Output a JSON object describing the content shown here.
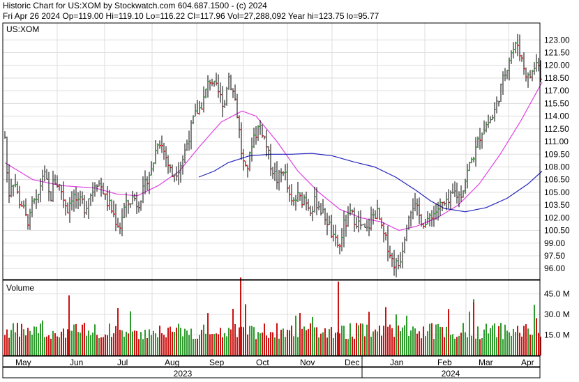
{
  "header": {
    "title": "Historic Chart for US:XOM by Stockwatch.com 604.687.1500 - (c) 2024",
    "stats": "Fri Apr 26 2024   Op=119.00   Hi=119.10   Lo=116.22   Cl=117.96   Vol=27,288,092   Year hi=123.75   lo=95.77"
  },
  "colors": {
    "up": "#2e9a2e",
    "down": "#cc1111",
    "ma_short": "#e040e0",
    "ma_long": "#2222bb",
    "grid": "#dddddd",
    "frame": "#000000"
  },
  "chart_data": [
    {
      "type": "candlestick",
      "title": "US:XOM",
      "y_ticks": [
        "123.00",
        "121.50",
        "120.00",
        "118.50",
        "117.00",
        "115.50",
        "114.00",
        "112.50",
        "111.00",
        "109.50",
        "108.00",
        "106.50",
        "105.00",
        "103.50",
        "102.00",
        "100.50",
        "99.00",
        "97.50",
        "96.00"
      ],
      "ylim": [
        94.7,
        125.0
      ],
      "grid": true,
      "series_points": [
        [
          0,
          111.5
        ],
        [
          5,
          104.5
        ],
        [
          10,
          106.5
        ],
        [
          15,
          106.0
        ],
        [
          20,
          104.0
        ],
        [
          25,
          103.5
        ],
        [
          30,
          102.0
        ],
        [
          35,
          101.5
        ],
        [
          40,
          104.0
        ],
        [
          45,
          103.5
        ],
        [
          50,
          105.5
        ],
        [
          55,
          107.5
        ],
        [
          60,
          106.0
        ],
        [
          65,
          104.0
        ],
        [
          70,
          106.5
        ],
        [
          75,
          106.0
        ],
        [
          80,
          105.5
        ],
        [
          85,
          104.0
        ],
        [
          90,
          103.0
        ],
        [
          95,
          104.5
        ],
        [
          100,
          104.5
        ],
        [
          105,
          103.5
        ],
        [
          110,
          104.0
        ],
        [
          115,
          103.0
        ],
        [
          120,
          104.5
        ],
        [
          125,
          105.0
        ],
        [
          130,
          106.5
        ],
        [
          135,
          106.0
        ],
        [
          140,
          105.5
        ],
        [
          145,
          104.0
        ],
        [
          150,
          103.5
        ],
        [
          155,
          102.5
        ],
        [
          160,
          101.5
        ],
        [
          165,
          101.0
        ],
        [
          170,
          103.0
        ],
        [
          175,
          103.5
        ],
        [
          180,
          104.0
        ],
        [
          185,
          104.5
        ],
        [
          190,
          103.5
        ],
        [
          195,
          104.5
        ],
        [
          200,
          105.5
        ],
        [
          205,
          107.0
        ],
        [
          210,
          107.5
        ],
        [
          215,
          109.5
        ],
        [
          220,
          111.5
        ],
        [
          225,
          110.5
        ],
        [
          230,
          109.5
        ],
        [
          235,
          108.0
        ],
        [
          240,
          107.0
        ],
        [
          245,
          107.5
        ],
        [
          250,
          108.0
        ],
        [
          255,
          109.0
        ],
        [
          260,
          110.5
        ],
        [
          265,
          112.0
        ],
        [
          270,
          113.5
        ],
        [
          275,
          114.5
        ],
        [
          280,
          115.0
        ],
        [
          285,
          116.0
        ],
        [
          290,
          117.5
        ],
        [
          295,
          118.5
        ],
        [
          300,
          117.5
        ],
        [
          305,
          117.0
        ],
        [
          310,
          116.0
        ],
        [
          315,
          115.5
        ],
        [
          320,
          119.0
        ],
        [
          325,
          117.5
        ],
        [
          330,
          116.0
        ],
        [
          335,
          113.0
        ],
        [
          340,
          109.0
        ],
        [
          345,
          107.5
        ],
        [
          350,
          108.5
        ],
        [
          355,
          111.5
        ],
        [
          360,
          112.0
        ],
        [
          365,
          113.0
        ],
        [
          370,
          112.0
        ],
        [
          375,
          110.5
        ],
        [
          380,
          108.5
        ],
        [
          385,
          107.5
        ],
        [
          390,
          106.5
        ],
        [
          395,
          107.0
        ],
        [
          400,
          108.0
        ],
        [
          405,
          105.5
        ],
        [
          410,
          103.5
        ],
        [
          415,
          104.0
        ],
        [
          420,
          104.5
        ],
        [
          425,
          104.0
        ],
        [
          430,
          104.5
        ],
        [
          435,
          103.5
        ],
        [
          440,
          103.0
        ],
        [
          445,
          104.0
        ],
        [
          450,
          103.5
        ],
        [
          455,
          102.5
        ],
        [
          460,
          102.0
        ],
        [
          465,
          101.0
        ],
        [
          470,
          99.5
        ],
        [
          475,
          99.0
        ],
        [
          480,
          98.5
        ],
        [
          485,
          101.0
        ],
        [
          490,
          101.5
        ],
        [
          495,
          102.5
        ],
        [
          500,
          102.0
        ],
        [
          505,
          101.5
        ],
        [
          510,
          101.0
        ],
        [
          515,
          100.5
        ],
        [
          520,
          100.5
        ],
        [
          525,
          102.0
        ],
        [
          530,
          102.5
        ],
        [
          535,
          102.5
        ],
        [
          540,
          100.5
        ],
        [
          545,
          99.5
        ],
        [
          550,
          98.5
        ],
        [
          555,
          97.0
        ],
        [
          560,
          96.5
        ],
        [
          565,
          96.5
        ],
        [
          570,
          98.5
        ],
        [
          575,
          101.0
        ],
        [
          580,
          103.0
        ],
        [
          585,
          103.5
        ],
        [
          590,
          103.0
        ],
        [
          595,
          102.0
        ],
        [
          600,
          101.5
        ],
        [
          605,
          101.0
        ],
        [
          610,
          102.5
        ],
        [
          615,
          102.5
        ],
        [
          620,
          103.0
        ],
        [
          625,
          103.5
        ],
        [
          630,
          103.5
        ],
        [
          635,
          103.5
        ],
        [
          640,
          104.5
        ],
        [
          645,
          105.0
        ],
        [
          650,
          104.5
        ],
        [
          655,
          105.0
        ],
        [
          660,
          106.5
        ],
        [
          665,
          108.0
        ],
        [
          670,
          109.0
        ],
        [
          675,
          110.0
        ],
        [
          680,
          111.5
        ],
        [
          685,
          112.5
        ],
        [
          690,
          113.0
        ],
        [
          695,
          113.5
        ],
        [
          700,
          114.0
        ],
        [
          705,
          115.5
        ],
        [
          710,
          117.0
        ],
        [
          715,
          118.5
        ],
        [
          720,
          120.0
        ],
        [
          725,
          121.5
        ],
        [
          730,
          122.0
        ],
        [
          735,
          122.5
        ],
        [
          740,
          121.0
        ],
        [
          745,
          119.5
        ],
        [
          750,
          118.5
        ],
        [
          755,
          119.0
        ],
        [
          760,
          120.0
        ],
        [
          765,
          120.5
        ],
        [
          770,
          117.5
        ]
      ],
      "moving_average_short": [
        [
          0,
          108.5
        ],
        [
          40,
          106.5
        ],
        [
          80,
          105.8
        ],
        [
          130,
          105.5
        ],
        [
          160,
          104.8
        ],
        [
          190,
          104.6
        ],
        [
          220,
          105.8
        ],
        [
          250,
          107.5
        ],
        [
          280,
          110.5
        ],
        [
          310,
          113.3
        ],
        [
          340,
          114.6
        ],
        [
          360,
          114.0
        ],
        [
          390,
          111.0
        ],
        [
          420,
          107.5
        ],
        [
          450,
          105.0
        ],
        [
          480,
          103.0
        ],
        [
          510,
          102.0
        ],
        [
          540,
          101.5
        ],
        [
          565,
          100.5
        ],
        [
          590,
          101.0
        ],
        [
          620,
          102.0
        ],
        [
          650,
          103.5
        ],
        [
          680,
          106.0
        ],
        [
          710,
          109.5
        ],
        [
          740,
          113.5
        ],
        [
          770,
          118.0
        ]
      ],
      "moving_average_long": [
        [
          278,
          106.8
        ],
        [
          300,
          107.5
        ],
        [
          320,
          108.5
        ],
        [
          350,
          109.3
        ],
        [
          380,
          109.5
        ],
        [
          410,
          109.5
        ],
        [
          440,
          109.6
        ],
        [
          470,
          109.3
        ],
        [
          500,
          108.6
        ],
        [
          530,
          108.0
        ],
        [
          560,
          106.8
        ],
        [
          590,
          105.2
        ],
        [
          610,
          104.0
        ],
        [
          630,
          103.1
        ],
        [
          660,
          102.7
        ],
        [
          690,
          103.2
        ],
        [
          720,
          104.3
        ],
        [
          750,
          106.0
        ],
        [
          770,
          107.5
        ]
      ]
    },
    {
      "type": "bar",
      "title": "Volume",
      "y_ticks": [
        "45.0 M",
        "30.0 M",
        "15.0 M"
      ],
      "ylim": [
        0,
        55
      ],
      "notable_volumes_m": {
        "Jun": 44,
        "Sep": 31,
        "Oct": 57,
        "Dec": 54,
        "Mar": 39,
        "Apr 26": 27.3
      }
    }
  ],
  "x_axis": {
    "months": [
      "May",
      "Jun",
      "Jul",
      "Aug",
      "Sep",
      "Oct",
      "Nov",
      "Dec",
      "Jan",
      "Feb",
      "Mar",
      "Apr"
    ],
    "years": [
      "2023",
      "2024"
    ]
  }
}
